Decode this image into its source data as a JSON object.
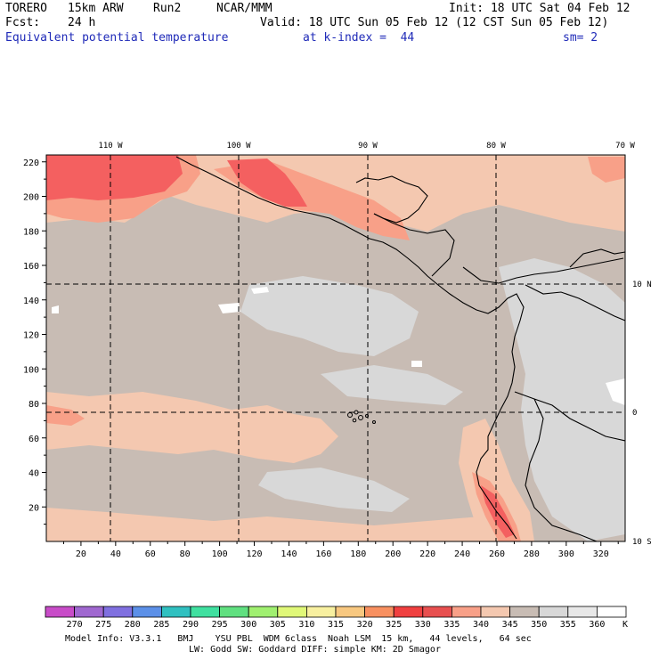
{
  "header": {
    "model": "TORERO",
    "resolution": "15km ARW",
    "run": "Run2",
    "org": "NCAR/MMM",
    "init": "Init: 18 UTC Sat 04 Feb 12",
    "fcst_label": "Fcst:",
    "fcst_value": "24 h",
    "valid": "Valid: 18 UTC Sun 05 Feb 12 (12 CST Sun 05 Feb 12)",
    "field": "Equivalent potential temperature",
    "level": "at k-index =  44",
    "smoothing": "sm= 2"
  },
  "map": {
    "lon_labels": [
      "110 W",
      "100 W",
      "90 W",
      "80 W",
      "70 W"
    ],
    "lat_labels": [
      "10 N",
      "0",
      "10 S"
    ],
    "y_ticks": [
      "220",
      "200",
      "180",
      "160",
      "140",
      "120",
      "100",
      "80",
      "60",
      "40",
      "20"
    ],
    "x_ticks": [
      "20",
      "40",
      "60",
      "80",
      "100",
      "120",
      "140",
      "160",
      "180",
      "200",
      "220",
      "240",
      "260",
      "280",
      "300",
      "320"
    ],
    "colors": {
      "ocean_base": "#c8bcb4",
      "warm_light": "#f4c8b0",
      "warm_mid": "#f8a088",
      "warm_hot": "#f46060",
      "cool_grey": "#d8d8d8",
      "white": "#ffffff"
    }
  },
  "colorbar": {
    "labels": [
      "270",
      "275",
      "280",
      "285",
      "290",
      "295",
      "300",
      "305",
      "310",
      "315",
      "320",
      "325",
      "330",
      "335",
      "340",
      "345",
      "350",
      "355",
      "360"
    ],
    "unit": "K",
    "colors": [
      "#c84cc8",
      "#a068d0",
      "#8070e0",
      "#5c90e8",
      "#30c0c0",
      "#40e0a0",
      "#60e080",
      "#a0f070",
      "#e0f878",
      "#f8f0a0",
      "#f8c880",
      "#f89060",
      "#f04040",
      "#e85050",
      "#f8a088",
      "#f4c8b0",
      "#c8bcb4",
      "#d8d8d8",
      "#e8e8e8",
      "#ffffff"
    ]
  },
  "footer": {
    "line1": "Model Info: V3.3.1   BMJ    YSU PBL  WDM 6class  Noah LSM  15 km,   44 levels,   64 sec",
    "line2": "LW: Godd SW: Goddard DIFF: simple KM: 2D Smagor"
  }
}
